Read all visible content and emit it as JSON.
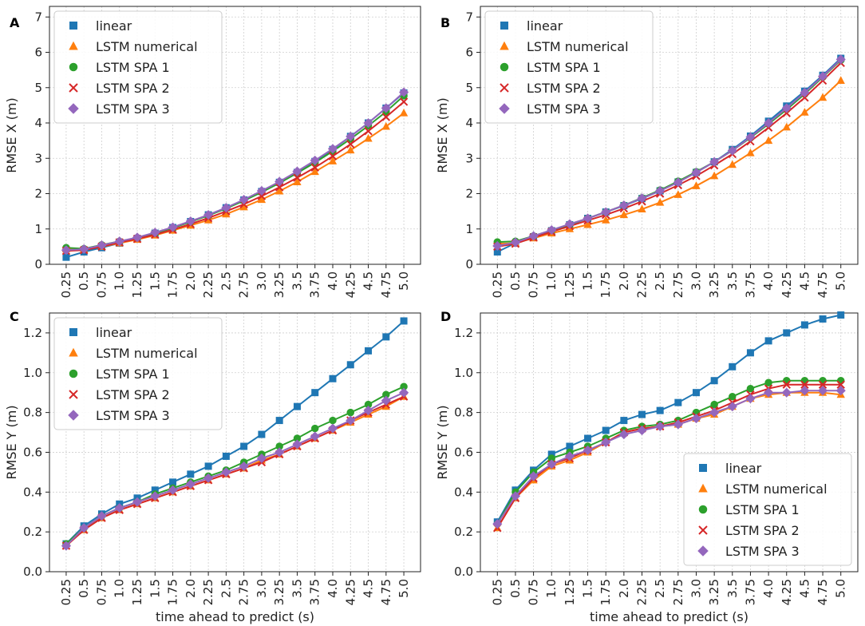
{
  "chart_data": [
    {
      "panel": "A",
      "type": "line",
      "ylabel": "RMSE X (m)",
      "xlabel": "",
      "ylim": [
        0,
        7.3
      ],
      "yticks": [
        "0",
        "1",
        "2",
        "3",
        "4",
        "5",
        "6",
        "7"
      ],
      "legend_position": "top-left",
      "categories": [
        "0.25",
        "0.5",
        "0.75",
        "1.0",
        "1.25",
        "1.5",
        "1.75",
        "2.0",
        "2.25",
        "2.5",
        "2.75",
        "3.0",
        "3.25",
        "3.5",
        "3.75",
        "4.0",
        "4.25",
        "4.5",
        "4.75",
        "5.0"
      ],
      "series": [
        {
          "name": "linear",
          "values": [
            0.2,
            0.35,
            0.47,
            0.6,
            0.73,
            0.88,
            1.04,
            1.21,
            1.4,
            1.6,
            1.82,
            2.06,
            2.32,
            2.6,
            2.91,
            3.25,
            3.62,
            4.0,
            4.42,
            4.85
          ]
        },
        {
          "name": "LSTM numerical",
          "values": [
            0.43,
            0.42,
            0.5,
            0.6,
            0.7,
            0.82,
            0.96,
            1.1,
            1.25,
            1.42,
            1.62,
            1.83,
            2.07,
            2.33,
            2.62,
            2.92,
            3.23,
            3.56,
            3.9,
            4.28
          ]
        },
        {
          "name": "LSTM SPA 1",
          "values": [
            0.47,
            0.44,
            0.55,
            0.65,
            0.75,
            0.88,
            1.03,
            1.2,
            1.38,
            1.58,
            1.8,
            2.04,
            2.3,
            2.58,
            2.88,
            3.2,
            3.55,
            3.92,
            4.32,
            4.77
          ]
        },
        {
          "name": "LSTM SPA 2",
          "values": [
            0.38,
            0.4,
            0.5,
            0.62,
            0.72,
            0.84,
            0.98,
            1.14,
            1.31,
            1.5,
            1.7,
            1.93,
            2.18,
            2.45,
            2.74,
            3.06,
            3.4,
            3.77,
            4.17,
            4.6
          ]
        },
        {
          "name": "LSTM SPA 3",
          "values": [
            0.4,
            0.43,
            0.54,
            0.65,
            0.76,
            0.9,
            1.05,
            1.22,
            1.4,
            1.6,
            1.83,
            2.08,
            2.34,
            2.63,
            2.94,
            3.27,
            3.62,
            4.0,
            4.42,
            4.87
          ]
        }
      ]
    },
    {
      "panel": "B",
      "type": "line",
      "ylabel": "RMSE X (m)",
      "xlabel": "",
      "ylim": [
        0,
        7.3
      ],
      "yticks": [
        "0",
        "1",
        "2",
        "3",
        "4",
        "5",
        "6",
        "7"
      ],
      "legend_position": "top-left",
      "categories": [
        "0.25",
        "0.5",
        "0.75",
        "1.0",
        "1.25",
        "1.5",
        "1.75",
        "2.0",
        "2.25",
        "2.5",
        "2.75",
        "3.0",
        "3.25",
        "3.5",
        "3.75",
        "4.0",
        "4.25",
        "4.5",
        "4.75",
        "5.0"
      ],
      "series": [
        {
          "name": "linear",
          "values": [
            0.35,
            0.6,
            0.78,
            0.95,
            1.12,
            1.3,
            1.48,
            1.66,
            1.86,
            2.08,
            2.33,
            2.6,
            2.9,
            3.25,
            3.63,
            4.05,
            4.48,
            4.9,
            5.35,
            5.83
          ]
        },
        {
          "name": "LSTM numerical",
          "values": [
            0.58,
            0.6,
            0.74,
            0.88,
            1.0,
            1.12,
            1.25,
            1.4,
            1.56,
            1.75,
            1.97,
            2.22,
            2.5,
            2.82,
            3.15,
            3.5,
            3.88,
            4.3,
            4.72,
            5.2
          ]
        },
        {
          "name": "LSTM SPA 1",
          "values": [
            0.63,
            0.65,
            0.8,
            0.96,
            1.13,
            1.3,
            1.48,
            1.67,
            1.88,
            2.1,
            2.35,
            2.62,
            2.9,
            3.22,
            3.58,
            3.97,
            4.38,
            4.82,
            5.3,
            5.78
          ]
        },
        {
          "name": "LSTM SPA 2",
          "values": [
            0.5,
            0.58,
            0.76,
            0.92,
            1.08,
            1.24,
            1.4,
            1.58,
            1.78,
            2.0,
            2.24,
            2.5,
            2.8,
            3.12,
            3.48,
            3.87,
            4.28,
            4.72,
            5.2,
            5.7
          ]
        },
        {
          "name": "LSTM SPA 3",
          "values": [
            0.52,
            0.62,
            0.8,
            0.97,
            1.14,
            1.3,
            1.48,
            1.67,
            1.87,
            2.08,
            2.32,
            2.6,
            2.9,
            3.22,
            3.6,
            4.0,
            4.42,
            4.86,
            5.32,
            5.8
          ]
        }
      ]
    },
    {
      "panel": "C",
      "type": "line",
      "ylabel": "RMSE Y (m)",
      "xlabel": "time ahead to predict (s)",
      "ylim": [
        0,
        1.3
      ],
      "yticks": [
        "0.0",
        "0.2",
        "0.4",
        "0.6",
        "0.8",
        "1.0",
        "1.2"
      ],
      "legend_position": "top-left",
      "categories": [
        "0.25",
        "0.5",
        "0.75",
        "1.0",
        "1.25",
        "1.5",
        "1.75",
        "2.0",
        "2.25",
        "2.5",
        "2.75",
        "3.0",
        "3.25",
        "3.5",
        "3.75",
        "4.0",
        "4.25",
        "4.5",
        "4.75",
        "5.0"
      ],
      "series": [
        {
          "name": "linear",
          "values": [
            0.14,
            0.23,
            0.29,
            0.34,
            0.37,
            0.41,
            0.45,
            0.49,
            0.53,
            0.58,
            0.63,
            0.69,
            0.76,
            0.83,
            0.9,
            0.97,
            1.04,
            1.11,
            1.18,
            1.26
          ]
        },
        {
          "name": "LSTM numerical",
          "values": [
            0.13,
            0.21,
            0.27,
            0.31,
            0.34,
            0.37,
            0.4,
            0.43,
            0.46,
            0.49,
            0.52,
            0.56,
            0.59,
            0.63,
            0.67,
            0.71,
            0.75,
            0.79,
            0.83,
            0.88
          ]
        },
        {
          "name": "LSTM SPA 1",
          "values": [
            0.14,
            0.22,
            0.28,
            0.32,
            0.35,
            0.39,
            0.42,
            0.45,
            0.48,
            0.51,
            0.55,
            0.59,
            0.63,
            0.67,
            0.72,
            0.76,
            0.8,
            0.84,
            0.89,
            0.93
          ]
        },
        {
          "name": "LSTM SPA 2",
          "values": [
            0.13,
            0.21,
            0.27,
            0.31,
            0.34,
            0.37,
            0.4,
            0.43,
            0.46,
            0.49,
            0.52,
            0.55,
            0.59,
            0.63,
            0.67,
            0.71,
            0.76,
            0.8,
            0.84,
            0.88
          ]
        },
        {
          "name": "LSTM SPA 3",
          "values": [
            0.13,
            0.22,
            0.28,
            0.32,
            0.35,
            0.38,
            0.41,
            0.44,
            0.47,
            0.5,
            0.53,
            0.57,
            0.6,
            0.64,
            0.68,
            0.72,
            0.76,
            0.81,
            0.86,
            0.9
          ]
        }
      ]
    },
    {
      "panel": "D",
      "type": "line",
      "ylabel": "RMSE Y (m)",
      "xlabel": "time ahead to predict (s)",
      "ylim": [
        0,
        1.3
      ],
      "yticks": [
        "0.0",
        "0.2",
        "0.4",
        "0.6",
        "0.8",
        "1.0",
        "1.2"
      ],
      "legend_position": "bottom-right",
      "categories": [
        "0.25",
        "0.5",
        "0.75",
        "1.0",
        "1.25",
        "1.5",
        "1.75",
        "2.0",
        "2.25",
        "2.5",
        "2.75",
        "3.0",
        "3.25",
        "3.5",
        "3.75",
        "4.0",
        "4.25",
        "4.5",
        "4.75",
        "5.0"
      ],
      "series": [
        {
          "name": "linear",
          "values": [
            0.25,
            0.41,
            0.51,
            0.59,
            0.63,
            0.67,
            0.71,
            0.76,
            0.79,
            0.81,
            0.85,
            0.9,
            0.96,
            1.03,
            1.1,
            1.16,
            1.2,
            1.24,
            1.27,
            1.29
          ]
        },
        {
          "name": "LSTM numerical",
          "values": [
            0.22,
            0.37,
            0.46,
            0.53,
            0.56,
            0.6,
            0.65,
            0.7,
            0.72,
            0.73,
            0.74,
            0.77,
            0.79,
            0.83,
            0.87,
            0.89,
            0.9,
            0.9,
            0.9,
            0.89
          ]
        },
        {
          "name": "LSTM SPA 1",
          "values": [
            0.24,
            0.4,
            0.5,
            0.57,
            0.6,
            0.63,
            0.67,
            0.71,
            0.73,
            0.74,
            0.76,
            0.8,
            0.84,
            0.88,
            0.92,
            0.95,
            0.96,
            0.96,
            0.96,
            0.96
          ]
        },
        {
          "name": "LSTM SPA 2",
          "values": [
            0.22,
            0.37,
            0.47,
            0.54,
            0.57,
            0.61,
            0.65,
            0.7,
            0.72,
            0.73,
            0.75,
            0.78,
            0.81,
            0.85,
            0.89,
            0.92,
            0.94,
            0.94,
            0.94,
            0.94
          ]
        },
        {
          "name": "LSTM SPA 3",
          "values": [
            0.24,
            0.38,
            0.48,
            0.54,
            0.58,
            0.61,
            0.65,
            0.69,
            0.71,
            0.73,
            0.74,
            0.77,
            0.8,
            0.83,
            0.87,
            0.9,
            0.9,
            0.91,
            0.91,
            0.91
          ]
        }
      ]
    }
  ],
  "legend": {
    "items": [
      {
        "label": "linear",
        "color": "#1f77b4",
        "marker": "square"
      },
      {
        "label": "LSTM numerical",
        "color": "#ff7f0e",
        "marker": "triangle"
      },
      {
        "label": "LSTM SPA 1",
        "color": "#2ca02c",
        "marker": "circle"
      },
      {
        "label": "LSTM SPA 2",
        "color": "#d62728",
        "marker": "x"
      },
      {
        "label": "LSTM SPA 3",
        "color": "#9467bd",
        "marker": "diamond"
      }
    ]
  },
  "colors": {
    "linear": "#1f77b4",
    "LSTM numerical": "#ff7f0e",
    "LSTM SPA 1": "#2ca02c",
    "LSTM SPA 2": "#d62728",
    "LSTM SPA 3": "#9467bd"
  }
}
